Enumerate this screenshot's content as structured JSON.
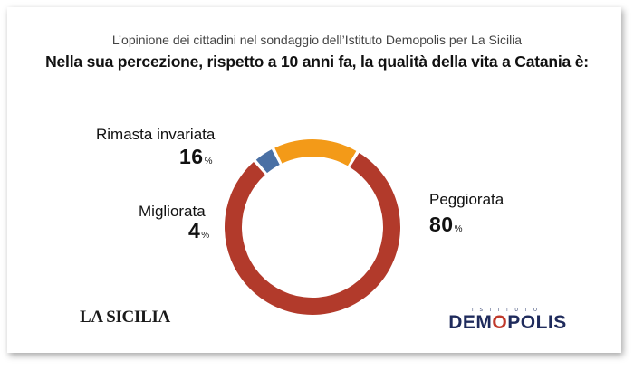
{
  "header": {
    "subtitle": "L’opinione dei cittadini nel sondaggio dell’Istituto Demopolis per La Sicilia",
    "title": "Nella sua percezione, rispetto a 10 anni fa, la qualità della vita a Catania è:"
  },
  "chart_data": {
    "type": "pie",
    "title": "Nella sua percezione, rispetto a 10 anni fa, la qualità della vita a Catania è:",
    "subtitle": "L’opinione dei cittadini nel sondaggio dell’Istituto Demopolis per La Sicilia",
    "unit": "%",
    "slices": [
      {
        "label": "Peggiorata",
        "value": 80,
        "display": "80",
        "color": "#b23a2b"
      },
      {
        "label": "Migliorata",
        "value": 4,
        "display": "4",
        "color": "#4a70a4"
      },
      {
        "label": "Rimasta invariata",
        "value": 16,
        "display": "16",
        "color": "#f39a18"
      }
    ]
  },
  "logos": {
    "left": "LA SICILIA",
    "right_small": "ISTITUTO",
    "right_pre": "DEM",
    "right_o": "O",
    "right_post": "POLIS"
  }
}
